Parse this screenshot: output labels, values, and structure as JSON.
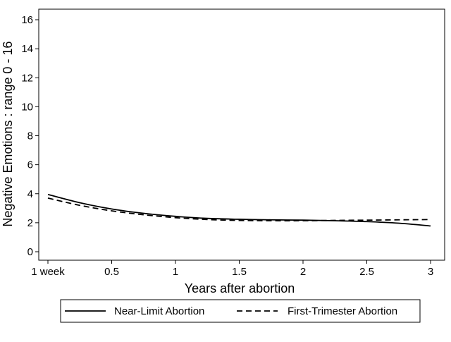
{
  "chart_data": {
    "type": "line",
    "title": "",
    "xlabel": "Years after abortion",
    "ylabel": "Negative Emotions : range 0 - 16",
    "xlim": [
      0,
      3
    ],
    "ylim": [
      0,
      16
    ],
    "x_ticks": [
      {
        "value": 0,
        "label": "1 week"
      },
      {
        "value": 0.5,
        "label": "0.5"
      },
      {
        "value": 1,
        "label": "1"
      },
      {
        "value": 1.5,
        "label": "1.5"
      },
      {
        "value": 2,
        "label": "2"
      },
      {
        "value": 2.5,
        "label": "2.5"
      },
      {
        "value": 3,
        "label": "3"
      }
    ],
    "y_ticks": [
      0,
      2,
      4,
      6,
      8,
      10,
      12,
      14,
      16
    ],
    "grid": false,
    "legend_position": "bottom",
    "series": [
      {
        "name": "Near-Limit Abortion",
        "line_style": "solid",
        "x": [
          0,
          0.25,
          0.5,
          0.75,
          1,
          1.25,
          1.5,
          1.75,
          2,
          2.25,
          2.5,
          2.75,
          3
        ],
        "values": [
          3.95,
          3.38,
          2.95,
          2.65,
          2.44,
          2.3,
          2.24,
          2.2,
          2.18,
          2.14,
          2.08,
          1.97,
          1.78
        ]
      },
      {
        "name": "First-Trimester Abortion",
        "line_style": "dashed",
        "x": [
          0,
          0.25,
          0.5,
          0.75,
          1,
          1.25,
          1.5,
          1.75,
          2,
          2.25,
          2.5,
          2.75,
          3
        ],
        "values": [
          3.7,
          3.2,
          2.82,
          2.55,
          2.35,
          2.22,
          2.16,
          2.14,
          2.14,
          2.16,
          2.18,
          2.2,
          2.22
        ]
      }
    ]
  }
}
